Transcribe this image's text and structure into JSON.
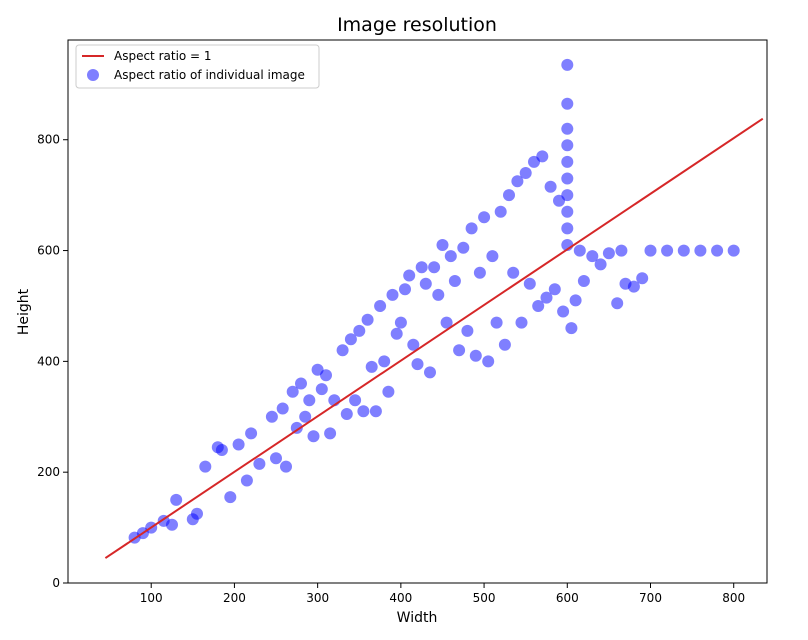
{
  "chart_data": {
    "type": "scatter",
    "title": "Image resolution",
    "xlabel": "Width",
    "ylabel": "Height",
    "xlim": [
      0,
      840
    ],
    "ylim": [
      0,
      980
    ],
    "xticks": [
      100,
      200,
      300,
      400,
      500,
      600,
      700,
      800
    ],
    "yticks": [
      0,
      200,
      400,
      600,
      800
    ],
    "grid": false,
    "legend_position": "top-left",
    "legend": {
      "line_label": "Aspect ratio = 1",
      "scatter_label": "Aspect ratio of individual image"
    },
    "colors": {
      "line": "#d62728",
      "points": "#0000ff"
    },
    "reference_line": {
      "name": "Aspect ratio = 1",
      "x": [
        45,
        835
      ],
      "y": [
        45,
        838
      ]
    },
    "series": [
      {
        "name": "Aspect ratio of individual image",
        "points": [
          [
            80,
            82
          ],
          [
            90,
            90
          ],
          [
            100,
            100
          ],
          [
            115,
            112
          ],
          [
            130,
            150
          ],
          [
            125,
            105
          ],
          [
            150,
            115
          ],
          [
            155,
            125
          ],
          [
            165,
            210
          ],
          [
            180,
            245
          ],
          [
            185,
            240
          ],
          [
            195,
            155
          ],
          [
            205,
            250
          ],
          [
            215,
            185
          ],
          [
            220,
            270
          ],
          [
            230,
            215
          ],
          [
            245,
            300
          ],
          [
            250,
            225
          ],
          [
            258,
            315
          ],
          [
            262,
            210
          ],
          [
            270,
            345
          ],
          [
            275,
            280
          ],
          [
            280,
            360
          ],
          [
            285,
            300
          ],
          [
            290,
            330
          ],
          [
            295,
            265
          ],
          [
            300,
            385
          ],
          [
            305,
            350
          ],
          [
            310,
            375
          ],
          [
            315,
            270
          ],
          [
            320,
            330
          ],
          [
            330,
            420
          ],
          [
            335,
            305
          ],
          [
            340,
            440
          ],
          [
            345,
            330
          ],
          [
            350,
            455
          ],
          [
            355,
            310
          ],
          [
            360,
            475
          ],
          [
            365,
            390
          ],
          [
            370,
            310
          ],
          [
            375,
            500
          ],
          [
            380,
            400
          ],
          [
            385,
            345
          ],
          [
            390,
            520
          ],
          [
            395,
            450
          ],
          [
            400,
            470
          ],
          [
            405,
            530
          ],
          [
            410,
            555
          ],
          [
            415,
            430
          ],
          [
            420,
            395
          ],
          [
            425,
            570
          ],
          [
            430,
            540
          ],
          [
            435,
            380
          ],
          [
            440,
            570
          ],
          [
            445,
            520
          ],
          [
            450,
            610
          ],
          [
            455,
            470
          ],
          [
            460,
            590
          ],
          [
            465,
            545
          ],
          [
            470,
            420
          ],
          [
            475,
            605
          ],
          [
            480,
            455
          ],
          [
            485,
            640
          ],
          [
            490,
            410
          ],
          [
            495,
            560
          ],
          [
            500,
            660
          ],
          [
            505,
            400
          ],
          [
            510,
            590
          ],
          [
            515,
            470
          ],
          [
            520,
            670
          ],
          [
            525,
            430
          ],
          [
            530,
            700
          ],
          [
            535,
            560
          ],
          [
            540,
            725
          ],
          [
            545,
            470
          ],
          [
            550,
            740
          ],
          [
            555,
            540
          ],
          [
            560,
            760
          ],
          [
            565,
            500
          ],
          [
            570,
            770
          ],
          [
            575,
            515
          ],
          [
            580,
            715
          ],
          [
            585,
            530
          ],
          [
            590,
            690
          ],
          [
            595,
            490
          ],
          [
            600,
            935
          ],
          [
            600,
            865
          ],
          [
            600,
            820
          ],
          [
            600,
            790
          ],
          [
            600,
            760
          ],
          [
            600,
            730
          ],
          [
            600,
            700
          ],
          [
            600,
            670
          ],
          [
            600,
            640
          ],
          [
            600,
            610
          ],
          [
            605,
            460
          ],
          [
            610,
            510
          ],
          [
            615,
            600
          ],
          [
            620,
            545
          ],
          [
            630,
            590
          ],
          [
            640,
            575
          ],
          [
            650,
            595
          ],
          [
            660,
            505
          ],
          [
            665,
            600
          ],
          [
            670,
            540
          ],
          [
            680,
            535
          ],
          [
            690,
            550
          ],
          [
            700,
            600
          ],
          [
            720,
            600
          ],
          [
            740,
            600
          ],
          [
            760,
            600
          ],
          [
            780,
            600
          ],
          [
            800,
            600
          ]
        ]
      }
    ]
  }
}
